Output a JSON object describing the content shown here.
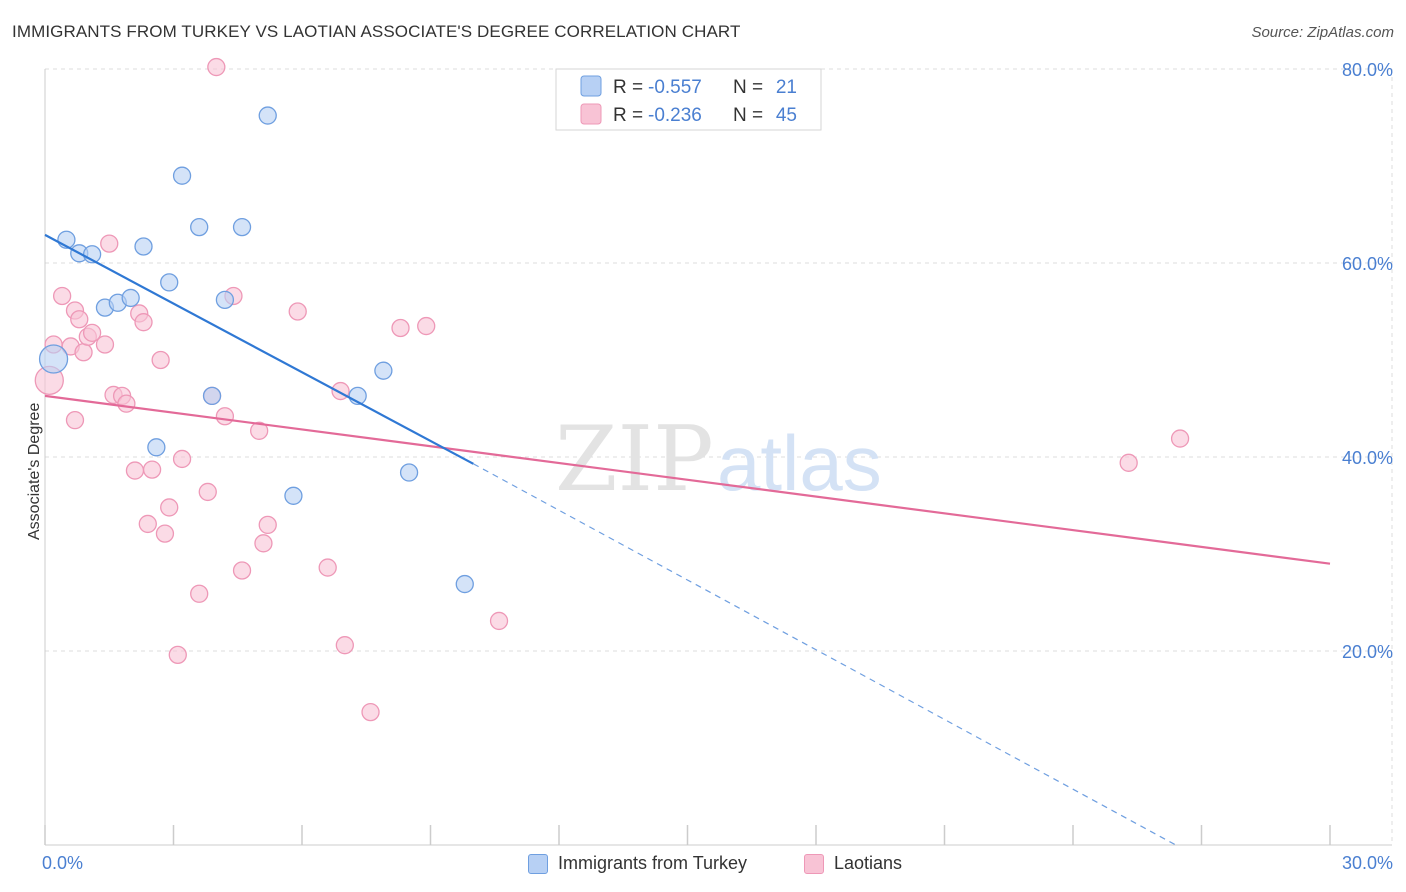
{
  "title": "IMMIGRANTS FROM TURKEY VS LAOTIAN ASSOCIATE'S DEGREE CORRELATION CHART",
  "source": "Source: ZipAtlas.com",
  "watermark": {
    "zip": "ZIP",
    "atlas": "atlas"
  },
  "colors": {
    "blue": "#2f78d4",
    "blue_fill": "#b7d0f4",
    "blue_stroke": "#6f9fe0",
    "pink": "#e36a98",
    "pink_fill": "#f8c3d5",
    "pink_stroke": "#ee98b7",
    "tick_label": "#4a7fd1",
    "grid": "#dddddd"
  },
  "legend_top": [
    {
      "r_label": "R = ",
      "r_value": "-0.557",
      "n_label": "N = ",
      "n_value": "21",
      "color": "blue"
    },
    {
      "r_label": "R = ",
      "r_value": "-0.236",
      "n_label": "N = ",
      "n_value": "45",
      "color": "pink"
    }
  ],
  "chart_data": {
    "type": "scatter",
    "xlabel": "",
    "ylabel": "Associate's Degree",
    "xlim": [
      0,
      30
    ],
    "ylim": [
      0,
      80
    ],
    "x_tick_labels": [
      "0.0%",
      "30.0%"
    ],
    "y_ticks": [
      20,
      40,
      60,
      80
    ],
    "y_tick_labels": [
      "20.0%",
      "40.0%",
      "60.0%",
      "80.0%"
    ],
    "grid": true,
    "legend": "bottom-center",
    "series": [
      {
        "name": "Immigrants from Turkey",
        "color": "blue",
        "points": [
          [
            0.2,
            50.1
          ],
          [
            0.5,
            62.4
          ],
          [
            0.8,
            61.0
          ],
          [
            1.1,
            60.9
          ],
          [
            1.4,
            55.4
          ],
          [
            1.7,
            55.9
          ],
          [
            2.0,
            56.4
          ],
          [
            2.3,
            61.7
          ],
          [
            2.6,
            41.0
          ],
          [
            2.9,
            58.0
          ],
          [
            3.2,
            69.0
          ],
          [
            3.6,
            63.7
          ],
          [
            3.9,
            46.3
          ],
          [
            4.2,
            56.2
          ],
          [
            4.6,
            63.7
          ],
          [
            5.2,
            75.2
          ],
          [
            5.8,
            36.0
          ],
          [
            7.3,
            46.3
          ],
          [
            7.9,
            48.9
          ],
          [
            8.5,
            38.4
          ],
          [
            9.8,
            26.9
          ]
        ],
        "trend": {
          "x": [
            0,
            10.0
          ],
          "y": [
            62.9,
            39.3
          ]
        },
        "trend_extension": {
          "x": [
            10.0,
            26.4
          ],
          "y": [
            39.3,
            0.0
          ]
        }
      },
      {
        "name": "Laotians",
        "color": "pink",
        "points": [
          [
            0.1,
            47.9
          ],
          [
            0.2,
            51.6
          ],
          [
            0.4,
            56.6
          ],
          [
            0.6,
            51.4
          ],
          [
            0.7,
            55.1
          ],
          [
            0.7,
            43.8
          ],
          [
            0.8,
            54.2
          ],
          [
            0.9,
            50.8
          ],
          [
            1.0,
            52.4
          ],
          [
            1.1,
            52.8
          ],
          [
            1.4,
            51.6
          ],
          [
            1.5,
            62.0
          ],
          [
            1.6,
            46.4
          ],
          [
            1.8,
            46.3
          ],
          [
            1.9,
            45.5
          ],
          [
            2.1,
            38.6
          ],
          [
            2.2,
            54.8
          ],
          [
            2.3,
            53.9
          ],
          [
            2.4,
            33.1
          ],
          [
            2.5,
            38.7
          ],
          [
            2.7,
            50.0
          ],
          [
            2.8,
            32.1
          ],
          [
            2.9,
            34.8
          ],
          [
            3.1,
            19.6
          ],
          [
            3.2,
            39.8
          ],
          [
            3.6,
            25.9
          ],
          [
            3.8,
            36.4
          ],
          [
            3.9,
            46.3
          ],
          [
            4.0,
            80.2
          ],
          [
            4.2,
            44.2
          ],
          [
            4.4,
            56.6
          ],
          [
            4.6,
            28.3
          ],
          [
            5.0,
            42.7
          ],
          [
            5.1,
            31.1
          ],
          [
            5.2,
            33.0
          ],
          [
            5.9,
            55.0
          ],
          [
            6.6,
            28.6
          ],
          [
            6.9,
            46.8
          ],
          [
            7.0,
            20.6
          ],
          [
            7.6,
            13.7
          ],
          [
            8.3,
            53.3
          ],
          [
            8.9,
            53.5
          ],
          [
            10.6,
            23.1
          ],
          [
            25.3,
            39.4
          ],
          [
            26.5,
            41.9
          ]
        ],
        "trend": {
          "x": [
            0,
            30.0
          ],
          "y": [
            46.3,
            29.0
          ]
        }
      }
    ]
  }
}
